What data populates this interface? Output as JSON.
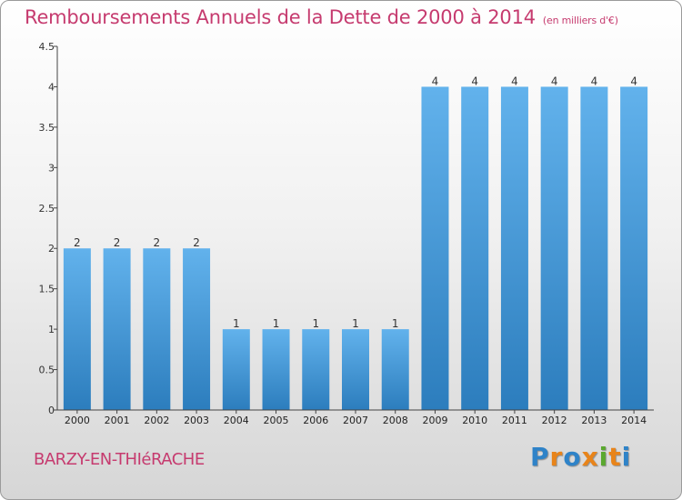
{
  "header": {
    "title": "Remboursements Annuels de la Dette de 2000 à 2014",
    "unit": "(en milliers d'€)"
  },
  "footer": {
    "city": "BARZY-EN-THIéRACHE",
    "logo_letters": [
      "P",
      "r",
      "o",
      "x",
      "i",
      "t",
      "i"
    ],
    "logo_colors": [
      "#2f83c8",
      "#e8841a",
      "#2f83c8",
      "#e8841a",
      "#5aa82f",
      "#e8841a",
      "#2f83c8"
    ]
  },
  "colors": {
    "bar_light": "#62b2ec",
    "bar_dark": "#2c7dbd",
    "axis": "#444444"
  },
  "chart_data": {
    "type": "bar",
    "title": "Remboursements Annuels de la Dette de 2000 à 2014",
    "categories": [
      "2000",
      "2001",
      "2002",
      "2003",
      "2004",
      "2005",
      "2006",
      "2007",
      "2008",
      "2009",
      "2010",
      "2011",
      "2012",
      "2013",
      "2014"
    ],
    "values": [
      2,
      2,
      2,
      2,
      1,
      1,
      1,
      1,
      1,
      4,
      4,
      4,
      4,
      4,
      4
    ],
    "data_labels": [
      "2",
      "2",
      "2",
      "2",
      "1",
      "1",
      "1",
      "1",
      "1",
      "4",
      "4",
      "4",
      "4",
      "4",
      "4"
    ],
    "yticks": [
      "0",
      "0.5",
      "1",
      "1.5",
      "2",
      "2.5",
      "3",
      "3.5",
      "4",
      "4.5"
    ],
    "ytick_values": [
      0,
      0.5,
      1,
      1.5,
      2,
      2.5,
      3,
      3.5,
      4,
      4.5
    ],
    "ylim": [
      0,
      4.5
    ],
    "grid": false,
    "xlabel": "",
    "ylabel": ""
  }
}
